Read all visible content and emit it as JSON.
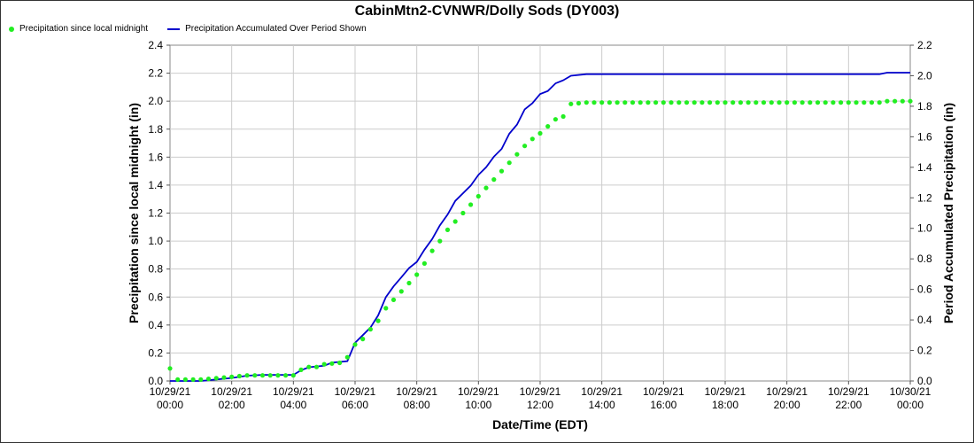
{
  "chart_data": {
    "type": "line",
    "title": "CabinMtn2-CVNWR/Dolly Sods (DY003)",
    "xlabel": "Date/Time (EDT)",
    "ylabel_left": "Precipitation since local midnight (in)",
    "ylabel_right": "Period Accumulated Precipitation (in)",
    "y_left_lim": [
      0,
      2.4
    ],
    "y_right_lim": [
      0,
      2.2
    ],
    "x_range_hours": [
      0,
      24
    ],
    "grid": true,
    "legend_position": "top-left",
    "x_ticks": [
      {
        "date": "10/29/21",
        "time": "00:00"
      },
      {
        "date": "10/29/21",
        "time": "02:00"
      },
      {
        "date": "10/29/21",
        "time": "04:00"
      },
      {
        "date": "10/29/21",
        "time": "06:00"
      },
      {
        "date": "10/29/21",
        "time": "08:00"
      },
      {
        "date": "10/29/21",
        "time": "10:00"
      },
      {
        "date": "10/29/21",
        "time": "12:00"
      },
      {
        "date": "10/29/21",
        "time": "14:00"
      },
      {
        "date": "10/29/21",
        "time": "16:00"
      },
      {
        "date": "10/29/21",
        "time": "18:00"
      },
      {
        "date": "10/29/21",
        "time": "20:00"
      },
      {
        "date": "10/29/21",
        "time": "22:00"
      },
      {
        "date": "10/30/21",
        "time": "00:00"
      }
    ],
    "y_left_ticks": [
      "0.0",
      "0.2",
      "0.4",
      "0.6",
      "0.8",
      "1.0",
      "1.2",
      "1.4",
      "1.6",
      "1.8",
      "2.0",
      "2.2",
      "2.4"
    ],
    "y_right_ticks": [
      "0.0",
      "0.2",
      "0.4",
      "0.6",
      "0.8",
      "1.0",
      "1.2",
      "1.4",
      "1.6",
      "1.8",
      "2.0",
      "2.2"
    ],
    "series": [
      {
        "name": "Precipitation since local midnight",
        "color": "#22ee22",
        "style": "dots",
        "axis": "left",
        "points": [
          [
            0.0,
            0.09
          ],
          [
            0.25,
            0.01
          ],
          [
            0.5,
            0.01
          ],
          [
            1.0,
            0.01
          ],
          [
            1.5,
            0.02
          ],
          [
            2.0,
            0.03
          ],
          [
            2.5,
            0.04
          ],
          [
            3.0,
            0.04
          ],
          [
            3.5,
            0.04
          ],
          [
            4.0,
            0.04
          ],
          [
            4.25,
            0.08
          ],
          [
            4.5,
            0.1
          ],
          [
            4.75,
            0.1
          ],
          [
            5.0,
            0.12
          ],
          [
            5.5,
            0.13
          ],
          [
            5.75,
            0.17
          ],
          [
            6.0,
            0.26
          ],
          [
            6.25,
            0.3
          ],
          [
            6.5,
            0.37
          ],
          [
            6.75,
            0.43
          ],
          [
            7.0,
            0.52
          ],
          [
            7.25,
            0.58
          ],
          [
            7.5,
            0.64
          ],
          [
            7.75,
            0.7
          ],
          [
            8.0,
            0.76
          ],
          [
            8.25,
            0.84
          ],
          [
            8.5,
            0.93
          ],
          [
            8.75,
            1.0
          ],
          [
            9.0,
            1.08
          ],
          [
            9.25,
            1.14
          ],
          [
            9.5,
            1.2
          ],
          [
            9.75,
            1.26
          ],
          [
            10.0,
            1.32
          ],
          [
            10.25,
            1.38
          ],
          [
            10.5,
            1.44
          ],
          [
            10.75,
            1.5
          ],
          [
            11.0,
            1.56
          ],
          [
            11.25,
            1.62
          ],
          [
            11.5,
            1.68
          ],
          [
            11.75,
            1.73
          ],
          [
            12.0,
            1.77
          ],
          [
            12.25,
            1.82
          ],
          [
            12.5,
            1.87
          ],
          [
            12.75,
            1.89
          ],
          [
            13.0,
            1.98
          ],
          [
            13.5,
            1.99
          ],
          [
            14.0,
            1.99
          ],
          [
            16.0,
            1.99
          ],
          [
            18.0,
            1.99
          ],
          [
            20.0,
            1.99
          ],
          [
            22.0,
            1.99
          ],
          [
            23.0,
            1.99
          ],
          [
            23.25,
            2.0
          ],
          [
            24.0,
            2.0
          ]
        ]
      },
      {
        "name": "Precipitation Accumulated Over Period Shown",
        "color": "#0000cc",
        "style": "line",
        "axis": "right",
        "points": [
          [
            0.0,
            0.0
          ],
          [
            1.0,
            0.0
          ],
          [
            1.5,
            0.01
          ],
          [
            2.0,
            0.02
          ],
          [
            2.5,
            0.035
          ],
          [
            3.0,
            0.04
          ],
          [
            4.0,
            0.04
          ],
          [
            4.25,
            0.07
          ],
          [
            4.5,
            0.09
          ],
          [
            5.0,
            0.1
          ],
          [
            5.25,
            0.12
          ],
          [
            5.75,
            0.13
          ],
          [
            6.0,
            0.25
          ],
          [
            6.25,
            0.3
          ],
          [
            6.5,
            0.35
          ],
          [
            6.75,
            0.43
          ],
          [
            7.0,
            0.55
          ],
          [
            7.25,
            0.62
          ],
          [
            7.5,
            0.68
          ],
          [
            7.75,
            0.74
          ],
          [
            8.0,
            0.78
          ],
          [
            8.25,
            0.86
          ],
          [
            8.5,
            0.93
          ],
          [
            8.75,
            1.02
          ],
          [
            9.0,
            1.09
          ],
          [
            9.25,
            1.18
          ],
          [
            9.5,
            1.23
          ],
          [
            9.75,
            1.28
          ],
          [
            10.0,
            1.35
          ],
          [
            10.25,
            1.4
          ],
          [
            10.5,
            1.47
          ],
          [
            10.75,
            1.52
          ],
          [
            11.0,
            1.62
          ],
          [
            11.25,
            1.68
          ],
          [
            11.5,
            1.78
          ],
          [
            11.75,
            1.82
          ],
          [
            12.0,
            1.88
          ],
          [
            12.25,
            1.9
          ],
          [
            12.5,
            1.95
          ],
          [
            12.75,
            1.97
          ],
          [
            13.0,
            2.0
          ],
          [
            13.5,
            2.01
          ],
          [
            14.0,
            2.01
          ],
          [
            16.0,
            2.01
          ],
          [
            18.0,
            2.01
          ],
          [
            20.0,
            2.01
          ],
          [
            22.0,
            2.01
          ],
          [
            23.0,
            2.01
          ],
          [
            23.25,
            2.02
          ],
          [
            24.0,
            2.02
          ]
        ]
      }
    ]
  }
}
